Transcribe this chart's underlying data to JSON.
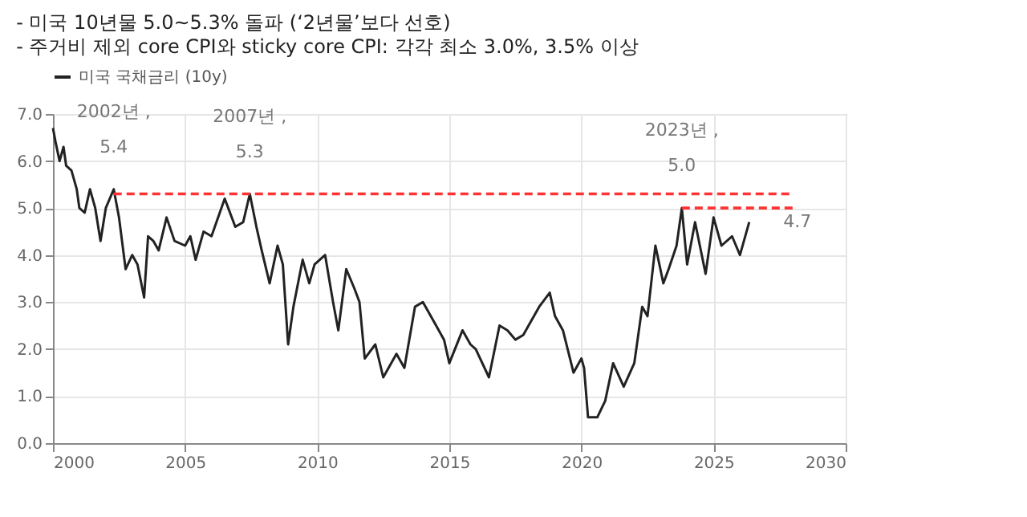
{
  "chart_data": {
    "type": "line",
    "title": "- 미국 10년물 5.0~5.3% 돌파 (‘2년물’보다 선호)",
    "subtitle": "- 주거비 제외 core CPI와 sticky core CPI: 각각 최소 3.0%, 3.5% 이상",
    "xlim": [
      2000,
      2030
    ],
    "xticks": [
      2000,
      2005,
      2010,
      2015,
      2020,
      2025,
      2030
    ],
    "ylim": [
      0,
      7
    ],
    "yticks": [
      {
        "value": 0,
        "label": "0.0"
      },
      {
        "value": 1,
        "label": "1.0"
      },
      {
        "value": 2,
        "label": "2.0"
      },
      {
        "value": 3,
        "label": "3.0"
      },
      {
        "value": 4,
        "label": "4.0"
      },
      {
        "value": 5,
        "label": "5.0"
      },
      {
        "value": 6,
        "label": "6.0"
      },
      {
        "value": 7,
        "label": "7.0"
      }
    ],
    "grid": true,
    "legend": "top",
    "series": [
      {
        "name": "미국 국채금리 (10y)",
        "color": "#222222",
        "line_style": "solid",
        "x": [
          2000.0,
          2000.1,
          2000.25,
          2000.4,
          2000.5,
          2000.7,
          2000.9,
          2001.0,
          2001.2,
          2001.4,
          2001.6,
          2001.8,
          2002.0,
          2002.3,
          2002.5,
          2002.75,
          2003.0,
          2003.2,
          2003.45,
          2003.6,
          2003.8,
          2004.0,
          2004.3,
          2004.6,
          2005.0,
          2005.2,
          2005.4,
          2005.7,
          2006.0,
          2006.5,
          2006.9,
          2007.2,
          2007.45,
          2007.7,
          2007.9,
          2008.2,
          2008.5,
          2008.7,
          2008.9,
          2009.1,
          2009.45,
          2009.7,
          2009.9,
          2010.3,
          2010.6,
          2010.8,
          2011.1,
          2011.4,
          2011.6,
          2011.8,
          2012.2,
          2012.5,
          2013.0,
          2013.3,
          2013.7,
          2014.0,
          2014.5,
          2014.8,
          2015.0,
          2015.5,
          2015.8,
          2016.0,
          2016.5,
          2016.9,
          2017.2,
          2017.5,
          2017.8,
          2018.0,
          2018.4,
          2018.8,
          2019.0,
          2019.3,
          2019.7,
          2020.0,
          2020.1,
          2020.25,
          2020.6,
          2020.9,
          2021.2,
          2021.6,
          2022.0,
          2022.3,
          2022.5,
          2022.8,
          2023.1,
          2023.3,
          2023.6,
          2023.8,
          2024.0,
          2024.3,
          2024.7,
          2025.0,
          2025.3,
          2025.7,
          2026.0,
          2026.35
        ],
        "values": [
          6.7,
          6.4,
          6.0,
          6.3,
          5.9,
          5.8,
          5.4,
          5.0,
          4.9,
          5.4,
          5.0,
          4.3,
          5.0,
          5.4,
          4.8,
          3.7,
          4.0,
          3.8,
          3.1,
          4.4,
          4.3,
          4.1,
          4.8,
          4.3,
          4.2,
          4.4,
          3.9,
          4.5,
          4.4,
          5.2,
          4.6,
          4.7,
          5.3,
          4.6,
          4.1,
          3.4,
          4.2,
          3.8,
          2.1,
          2.9,
          3.9,
          3.4,
          3.8,
          4.0,
          3.0,
          2.4,
          3.7,
          3.3,
          3.0,
          1.8,
          2.1,
          1.4,
          1.9,
          1.6,
          2.9,
          3.0,
          2.5,
          2.2,
          1.7,
          2.4,
          2.1,
          2.0,
          1.4,
          2.5,
          2.4,
          2.2,
          2.3,
          2.5,
          2.9,
          3.2,
          2.7,
          2.4,
          1.5,
          1.8,
          1.6,
          0.55,
          0.55,
          0.9,
          1.7,
          1.2,
          1.7,
          2.9,
          2.7,
          4.2,
          3.4,
          3.7,
          4.2,
          5.0,
          3.8,
          4.7,
          3.6,
          4.8,
          4.2,
          4.4,
          4.0,
          4.7
        ]
      },
      {
        "color": "#ff3333",
        "line_style": "dashed",
        "x": [
          2002.3,
          2028
        ],
        "values": [
          5.3,
          5.3
        ]
      },
      {
        "color": "#ff3333",
        "line_style": "dashed",
        "x": [
          2023.8,
          2028
        ],
        "values": [
          5.0,
          5.0
        ]
      }
    ],
    "annotations": [
      {
        "text": "2002년 ,\n5.4",
        "x": 2002.3,
        "y": 5.4
      },
      {
        "text": "2007년 ,\n5.3",
        "x": 2007.45,
        "y": 5.3
      },
      {
        "text": "2023년 ,\n5.0",
        "x": 2023.8,
        "y": 5.0
      },
      {
        "text": "4.7",
        "x": 2026.35,
        "y": 4.7
      }
    ]
  }
}
